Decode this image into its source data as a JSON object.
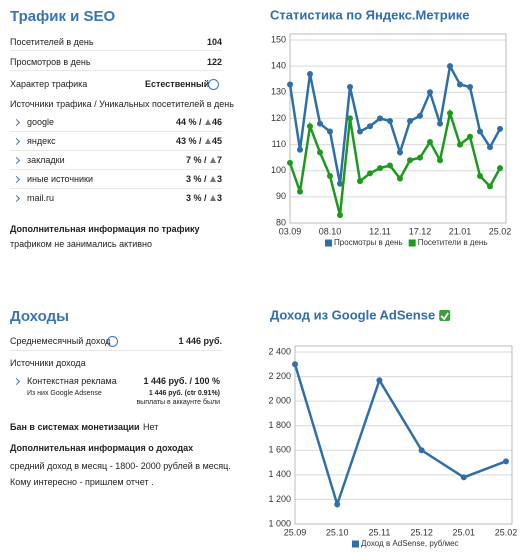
{
  "traffic": {
    "title": "Трафик и SEO",
    "visitors_label": "Посетителей в день",
    "visitors": 104,
    "views_label": "Просмотров в день",
    "views": 122,
    "type_label": "Характер трафика",
    "type_value": "Естественный",
    "sources_label": "Источники трафика / Уникальных посетителей в день",
    "sources": [
      {
        "name": "google",
        "share": "44 % /",
        "visitors": 46
      },
      {
        "name": "яндекс",
        "share": "43 % /",
        "visitors": 45
      },
      {
        "name": "закладки",
        "share": "7 % /",
        "visitors": 7
      },
      {
        "name": "иные источники",
        "share": "3 % /",
        "visitors": 3
      },
      {
        "name": "mail.ru",
        "share": "3 % /",
        "visitors": 3
      }
    ],
    "extra_title": "Дополнительная информация по трафику",
    "extra_text": "трафиком не занимались активно"
  },
  "income": {
    "title": "Доходы",
    "monthly_label": "Среднемесячный доход",
    "monthly": "1 446 руб.",
    "sources_label": "Источники дохода",
    "source_name": "Контекстная реклама",
    "source_amount": "1 446 руб. / 100 %",
    "sub_name": "Из них Google Adsense",
    "sub_amount": "1 446 руб. (ctr 0.91%)",
    "sub_note": "выплаты в аккаунте были",
    "ban_label": "Бан в системах монетизации",
    "ban_value": "Нет",
    "extra_title": "Дополнительная информация о доходах",
    "extra_lines": [
      "средний доход в месяц - 1800- 2000 рублей в месяц.",
      "Кому интересно - пришлем отчет ."
    ]
  },
  "chart_data": [
    {
      "type": "line",
      "title": "Статистика по Яндекс.Метрике",
      "categories": [
        "03.09",
        null,
        null,
        null,
        "08.10",
        null,
        null,
        null,
        null,
        "12.11",
        null,
        null,
        null,
        "17.12",
        null,
        null,
        null,
        "21.01",
        null,
        null,
        null,
        "25.02"
      ],
      "ylim": [
        80,
        150
      ],
      "yticks": [
        80,
        90,
        100,
        110,
        120,
        130,
        140,
        150
      ],
      "grid": true,
      "series": [
        {
          "name": "Просмотры в день",
          "color": "#2e6fa7",
          "values": [
            133,
            108,
            137,
            118,
            115,
            95,
            132,
            115,
            117,
            120,
            119,
            107,
            119,
            121,
            130,
            118,
            140,
            133,
            132,
            115,
            109,
            116
          ]
        },
        {
          "name": "Посетители в день",
          "color": "#1d9a1d",
          "values": [
            103,
            92,
            117,
            107,
            98,
            83,
            120,
            96,
            99,
            101,
            102,
            97,
            104,
            105,
            111,
            104,
            122,
            110,
            113,
            98,
            94,
            101
          ]
        }
      ]
    },
    {
      "type": "line",
      "title": "Доход из Google AdSense",
      "categories": [
        "25.09",
        "25.10",
        "25.11",
        "25.12",
        "25.01",
        "25.02"
      ],
      "ylim": [
        1000,
        2400
      ],
      "yticks": [
        {
          "value": 1000,
          "label": "1 000"
        },
        {
          "value": 1200,
          "label": "1 200"
        },
        {
          "value": 1400,
          "label": "1 400"
        },
        {
          "value": 1600,
          "label": "1 600"
        },
        {
          "value": 1800,
          "label": "1 800"
        },
        {
          "value": 2000,
          "label": "2 000"
        },
        {
          "value": 2200,
          "label": "2 200"
        },
        {
          "value": 2400,
          "label": "2 400"
        }
      ],
      "grid": true,
      "series": [
        {
          "name": "Доход в AdSense, руб/мес",
          "color": "#2e6fa7",
          "values": [
            2300,
            1160,
            2170,
            1600,
            1380,
            1510
          ]
        }
      ]
    }
  ]
}
